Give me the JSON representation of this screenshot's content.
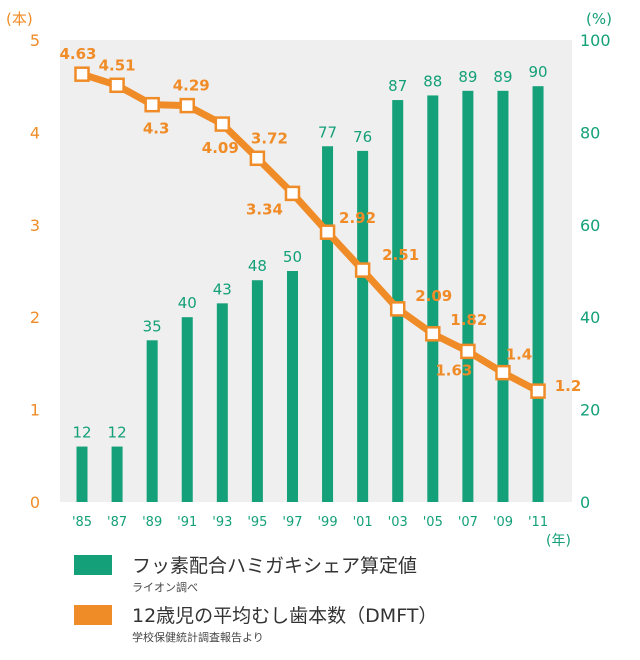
{
  "chart_data": {
    "type": "bar+line",
    "categories": [
      "'85",
      "'87",
      "'89",
      "'91",
      "'93",
      "'95",
      "'97",
      "'99",
      "'01",
      "'03",
      "'05",
      "'07",
      "'09",
      "'11"
    ],
    "series": [
      {
        "name": "フッ素配合ハミガキシェア算定値",
        "source": "ライオン調べ",
        "type": "bar",
        "axis": "right",
        "unit": "%",
        "color": "#14a078",
        "values": [
          12,
          12,
          35,
          40,
          43,
          48,
          50,
          77,
          76,
          87,
          88,
          89,
          89,
          90
        ],
        "labels": [
          "12",
          "12",
          "35",
          "40",
          "43",
          "48",
          "50",
          "77",
          "76",
          "87",
          "88",
          "89",
          "89",
          "90"
        ]
      },
      {
        "name": "12歳児の平均むし歯本数（DMFT）",
        "source": "学校保健統計調査報告より",
        "type": "line",
        "axis": "left",
        "unit": "本",
        "color": "#f08c28",
        "values": [
          4.63,
          4.51,
          4.3,
          4.29,
          4.09,
          3.72,
          3.34,
          2.92,
          2.51,
          2.09,
          1.82,
          1.63,
          1.4,
          1.2
        ],
        "labels": [
          "4.63",
          "4.51",
          "4.3",
          "4.29",
          "4.09",
          "3.72",
          "3.34",
          "2.92",
          "2.51",
          "2.09",
          "1.82",
          "1.63",
          "1.4",
          "1.2"
        ]
      }
    ],
    "left_axis": {
      "unit_label": "(本)",
      "range": [
        0,
        5
      ],
      "ticks": [
        "0",
        "1",
        "2",
        "3",
        "4",
        "5"
      ],
      "color": "#f08c28"
    },
    "right_axis": {
      "unit_label": "(%)",
      "range": [
        0,
        100
      ],
      "ticks": [
        "0",
        "20",
        "40",
        "60",
        "80",
        "100"
      ],
      "color": "#14a078"
    },
    "x_axis": {
      "unit_label": "(年)"
    },
    "grid": false,
    "plot_background": "#efefef"
  },
  "legend": [
    {
      "label": "フッ素配合ハミガキシェア算定値",
      "source": "ライオン調べ",
      "color": "#14a078"
    },
    {
      "label": "12歳児の平均むし歯本数（DMFT）",
      "source": "学校保健統計調査報告より",
      "color": "#f08c28"
    }
  ]
}
